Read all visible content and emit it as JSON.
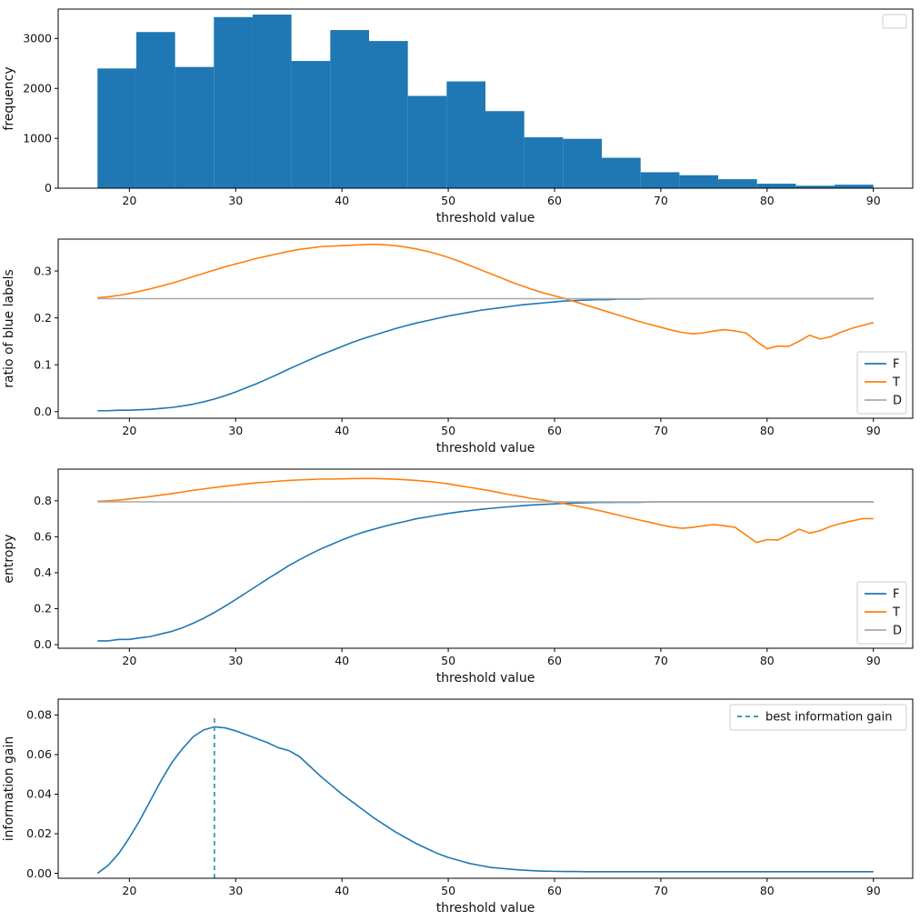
{
  "figure": {
    "background": "#ffffff",
    "accent_blue": "#1f77b4",
    "accent_orange": "#ff7f0e",
    "accent_gray": "#a9a9a9",
    "accent_teal": "#2691a6"
  },
  "chart_data": [
    {
      "id": "frequency-histogram",
      "type": "bar",
      "xlabel": "threshold value",
      "ylabel": "frequency",
      "xlim": [
        13.3,
        93.7
      ],
      "ylim": [
        0,
        3590
      ],
      "xticks": [
        20,
        30,
        40,
        50,
        60,
        70,
        80,
        90
      ],
      "yticks": [
        0,
        1000,
        2000,
        3000
      ],
      "ytick_labels": [
        "0",
        "1000",
        "2000",
        "3000"
      ],
      "bins": {
        "edges": [
          17,
          20.65,
          24.3,
          27.95,
          31.6,
          35.25,
          38.9,
          42.55,
          46.2,
          49.85,
          53.5,
          57.15,
          60.8,
          64.45,
          68.1,
          71.75,
          75.4,
          79.05,
          82.7,
          86.35,
          90
        ],
        "counts": [
          2400,
          3130,
          2430,
          3430,
          3480,
          2550,
          3170,
          2950,
          1850,
          2140,
          1545,
          1020,
          990,
          610,
          320,
          260,
          180,
          90,
          50,
          70
        ],
        "color": "#1f77b4"
      },
      "legend": {
        "loc": "upper right",
        "entries": []
      }
    },
    {
      "id": "ratio-of-blue-labels",
      "type": "line",
      "xlabel": "threshold value",
      "ylabel": "ratio of blue labels",
      "xlim": [
        13.3,
        93.7
      ],
      "ylim": [
        -0.014,
        0.368
      ],
      "xticks": [
        20,
        30,
        40,
        50,
        60,
        70,
        80,
        90
      ],
      "yticks": [
        0.0,
        0.1,
        0.2,
        0.3
      ],
      "ytick_labels": [
        "0.0",
        "0.1",
        "0.2",
        "0.3"
      ],
      "x_range": [
        17,
        90
      ],
      "series": [
        {
          "name": "F",
          "color": "#1f77b4",
          "y": [
            0.002,
            0.002,
            0.003,
            0.003,
            0.004,
            0.005,
            0.007,
            0.009,
            0.012,
            0.016,
            0.021,
            0.027,
            0.034,
            0.042,
            0.051,
            0.06,
            0.07,
            0.08,
            0.091,
            0.101,
            0.111,
            0.121,
            0.13,
            0.139,
            0.148,
            0.156,
            0.163,
            0.17,
            0.177,
            0.183,
            0.189,
            0.194,
            0.199,
            0.204,
            0.208,
            0.212,
            0.216,
            0.219,
            0.222,
            0.225,
            0.228,
            0.23,
            0.232,
            0.234,
            0.236,
            0.237,
            0.238,
            0.239,
            0.239,
            0.24,
            0.24,
            0.24,
            0.241,
            0.241,
            0.241,
            0.241,
            0.241,
            0.241,
            0.241,
            0.241,
            0.241,
            0.241,
            0.241,
            0.241,
            0.241,
            0.241,
            0.241,
            0.241,
            0.241,
            0.241,
            0.241,
            0.241,
            0.241,
            0.241
          ]
        },
        {
          "name": "T",
          "color": "#ff7f0e",
          "y": [
            0.243,
            0.245,
            0.248,
            0.252,
            0.257,
            0.262,
            0.268,
            0.274,
            0.281,
            0.288,
            0.295,
            0.302,
            0.309,
            0.315,
            0.321,
            0.327,
            0.332,
            0.337,
            0.342,
            0.346,
            0.349,
            0.352,
            0.353,
            0.354,
            0.355,
            0.356,
            0.357,
            0.356,
            0.354,
            0.351,
            0.347,
            0.342,
            0.336,
            0.329,
            0.321,
            0.312,
            0.303,
            0.294,
            0.285,
            0.276,
            0.268,
            0.26,
            0.253,
            0.247,
            0.241,
            0.234,
            0.227,
            0.22,
            0.213,
            0.206,
            0.199,
            0.192,
            0.186,
            0.18,
            0.174,
            0.169,
            0.166,
            0.168,
            0.172,
            0.175,
            0.172,
            0.168,
            0.15,
            0.134,
            0.14,
            0.139,
            0.15,
            0.163,
            0.155,
            0.16,
            0.17,
            0.178,
            0.184,
            0.19
          ]
        },
        {
          "name": "D",
          "color": "#a9a9a9",
          "y_const": 0.241
        }
      ],
      "legend": {
        "loc": "lower right",
        "entries": [
          {
            "label": "F",
            "color": "#1f77b4"
          },
          {
            "label": "T",
            "color": "#ff7f0e"
          },
          {
            "label": "D",
            "color": "#a9a9a9"
          }
        ]
      }
    },
    {
      "id": "entropy",
      "type": "line",
      "xlabel": "threshold value",
      "ylabel": "entropy",
      "xlim": [
        13.3,
        93.7
      ],
      "ylim": [
        -0.02,
        0.976
      ],
      "xticks": [
        20,
        30,
        40,
        50,
        60,
        70,
        80,
        90
      ],
      "yticks": [
        0.0,
        0.2,
        0.4,
        0.6,
        0.8
      ],
      "ytick_labels": [
        "0.0",
        "0.2",
        "0.4",
        "0.6",
        "0.8"
      ],
      "x_range": [
        17,
        90
      ],
      "series": [
        {
          "name": "F",
          "color": "#1f77b4",
          "y": [
            0.021,
            0.021,
            0.029,
            0.029,
            0.038,
            0.045,
            0.06,
            0.074,
            0.094,
            0.119,
            0.147,
            0.179,
            0.214,
            0.251,
            0.289,
            0.327,
            0.366,
            0.402,
            0.44,
            0.472,
            0.503,
            0.532,
            0.557,
            0.582,
            0.605,
            0.625,
            0.642,
            0.658,
            0.673,
            0.686,
            0.7,
            0.71,
            0.72,
            0.73,
            0.738,
            0.745,
            0.752,
            0.758,
            0.763,
            0.768,
            0.773,
            0.777,
            0.78,
            0.783,
            0.786,
            0.788,
            0.789,
            0.791,
            0.791,
            0.792,
            0.792,
            0.792,
            0.794,
            0.794,
            0.794,
            0.794,
            0.794,
            0.794,
            0.794,
            0.794,
            0.794,
            0.794,
            0.794,
            0.794,
            0.794,
            0.794,
            0.794,
            0.794,
            0.794,
            0.794,
            0.794,
            0.794,
            0.794,
            0.794
          ]
        },
        {
          "name": "T",
          "color": "#ff7f0e",
          "y": [
            0.797,
            0.8,
            0.804,
            0.81,
            0.817,
            0.824,
            0.832,
            0.84,
            0.849,
            0.858,
            0.866,
            0.874,
            0.881,
            0.888,
            0.894,
            0.9,
            0.904,
            0.909,
            0.913,
            0.916,
            0.918,
            0.921,
            0.921,
            0.922,
            0.923,
            0.924,
            0.924,
            0.922,
            0.92,
            0.917,
            0.913,
            0.908,
            0.902,
            0.894,
            0.884,
            0.875,
            0.865,
            0.855,
            0.843,
            0.832,
            0.822,
            0.811,
            0.803,
            0.794,
            0.783,
            0.772,
            0.76,
            0.748,
            0.735,
            0.72,
            0.706,
            0.693,
            0.68,
            0.666,
            0.654,
            0.647,
            0.652,
            0.661,
            0.668,
            0.661,
            0.652,
            0.61,
            0.568,
            0.584,
            0.582,
            0.61,
            0.642,
            0.62,
            0.634,
            0.658,
            0.675,
            0.688,
            0.701,
            0.701
          ]
        },
        {
          "name": "D",
          "color": "#a9a9a9",
          "y_const": 0.794
        }
      ],
      "legend": {
        "loc": "lower right",
        "entries": [
          {
            "label": "F",
            "color": "#1f77b4"
          },
          {
            "label": "T",
            "color": "#ff7f0e"
          },
          {
            "label": "D",
            "color": "#a9a9a9"
          }
        ]
      }
    },
    {
      "id": "information-gain",
      "type": "line",
      "xlabel": "threshold value",
      "ylabel": "information gain",
      "xlim": [
        13.3,
        93.7
      ],
      "ylim": [
        -0.0025,
        0.088
      ],
      "xticks": [
        20,
        30,
        40,
        50,
        60,
        70,
        80,
        90
      ],
      "yticks": [
        0,
        0.02,
        0.04,
        0.06,
        0.08
      ],
      "ytick_labels": [
        "0.00",
        "0.02",
        "0.04",
        "0.06",
        "0.08"
      ],
      "x_range": [
        17,
        90
      ],
      "series": [
        {
          "name": "information gain",
          "color": "#1f77b4",
          "y": [
            0.0,
            0.004,
            0.01,
            0.018,
            0.027,
            0.037,
            0.047,
            0.056,
            0.063,
            0.069,
            0.0725,
            0.074,
            0.0735,
            0.072,
            0.07,
            0.068,
            0.066,
            0.0635,
            0.062,
            0.059,
            0.054,
            0.049,
            0.0445,
            0.04,
            0.036,
            0.032,
            0.028,
            0.0245,
            0.021,
            0.018,
            0.015,
            0.0125,
            0.01,
            0.008,
            0.0065,
            0.005,
            0.004,
            0.003,
            0.0025,
            0.002,
            0.0016,
            0.0013,
            0.0011,
            0.001,
            0.0009,
            0.0009,
            0.0008,
            0.0008,
            0.0008,
            0.0008,
            0.0008,
            0.0008,
            0.0008,
            0.0008,
            0.0008,
            0.0008,
            0.0008,
            0.0008,
            0.0008,
            0.0008,
            0.0008,
            0.0008,
            0.0008,
            0.0008,
            0.0008,
            0.0008,
            0.0008,
            0.0008,
            0.0008,
            0.0008,
            0.0008,
            0.0008,
            0.0008,
            0.0008
          ]
        }
      ],
      "vline": {
        "x": 28,
        "ymax": 0.0785,
        "color": "#2691a6",
        "name": "best-threshold"
      },
      "legend": {
        "loc": "upper right",
        "entries": [
          {
            "label": "best information gain",
            "color": "#2691a6",
            "dash": true
          }
        ]
      }
    }
  ]
}
